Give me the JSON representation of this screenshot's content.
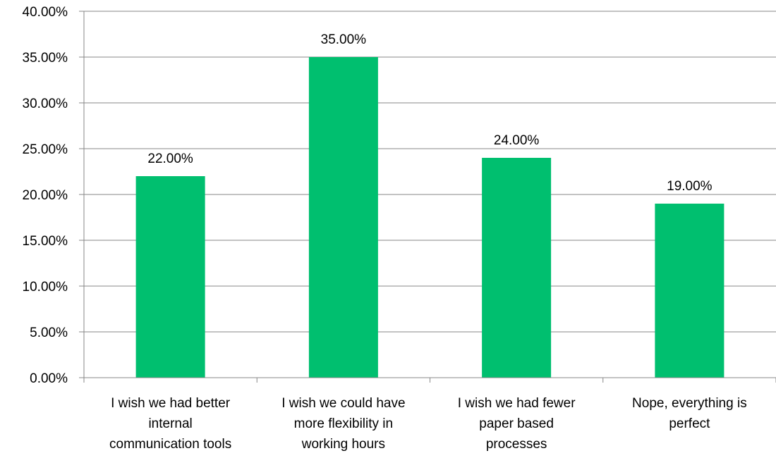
{
  "chart_data": {
    "type": "bar",
    "categories": [
      [
        "I wish we had better",
        "internal",
        "communication tools"
      ],
      [
        "I wish we could have",
        "more flexibility in",
        "working hours"
      ],
      [
        "I wish we had fewer",
        "paper based",
        "processes"
      ],
      [
        "Nope, everything is",
        "perfect"
      ]
    ],
    "values": [
      22.0,
      35.0,
      24.0,
      19.0
    ],
    "data_labels": [
      "22.00%",
      "35.00%",
      "24.00%",
      "19.00%"
    ],
    "ylim": [
      0,
      40
    ],
    "yticks": [
      0,
      5,
      10,
      15,
      20,
      25,
      30,
      35,
      40
    ],
    "ytick_labels": [
      "0.00%",
      "5.00%",
      "10.00%",
      "15.00%",
      "20.00%",
      "25.00%",
      "30.00%",
      "35.00%",
      "40.00%"
    ],
    "title": "",
    "xlabel": "",
    "ylabel": "",
    "grid": true,
    "legend": "none",
    "colors": {
      "bar": "#00BF6F",
      "grid": "#878787",
      "text": "#000000"
    }
  }
}
